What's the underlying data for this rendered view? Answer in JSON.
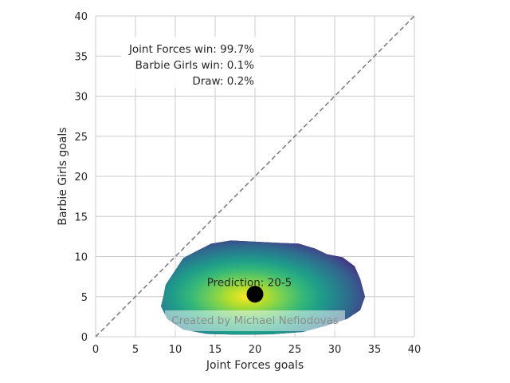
{
  "chart_data": {
    "type": "heatmap",
    "xlabel": "Joint Forces goals",
    "ylabel": "Barbie Girls goals",
    "xlim": [
      0,
      40
    ],
    "ylim": [
      0,
      40
    ],
    "x_ticks": [
      "0",
      "5",
      "10",
      "15",
      "20",
      "25",
      "30",
      "35",
      "40"
    ],
    "y_ticks": [
      "0",
      "5",
      "10",
      "15",
      "20",
      "25",
      "30",
      "35",
      "40"
    ],
    "grid": true,
    "colormap": "viridis",
    "density": {
      "center": [
        19,
        5
      ],
      "spread_x": 7,
      "spread_y": 3.4,
      "outline": [
        [
          8.5,
          5
        ],
        [
          8.8,
          6.5
        ],
        [
          9.8,
          8
        ],
        [
          11,
          9.8
        ],
        [
          12.5,
          10.6
        ],
        [
          14.5,
          11.6
        ],
        [
          17,
          12
        ],
        [
          19,
          11.9
        ],
        [
          21,
          11.8
        ],
        [
          23,
          11.7
        ],
        [
          25.5,
          11.6
        ],
        [
          27.5,
          11
        ],
        [
          29,
          10.3
        ],
        [
          31,
          9.9
        ],
        [
          32.5,
          8.8
        ],
        [
          33.2,
          7.2
        ],
        [
          33.8,
          5
        ],
        [
          33.2,
          3.3
        ],
        [
          31.5,
          2.2
        ],
        [
          29,
          1.4
        ],
        [
          26,
          0.6
        ],
        [
          22,
          0.3
        ],
        [
          18,
          0.25
        ],
        [
          14,
          0.35
        ],
        [
          11,
          0.9
        ],
        [
          9,
          2.2
        ],
        [
          8.2,
          3.8
        ]
      ]
    },
    "diagonal": {
      "from": [
        0,
        0
      ],
      "to": [
        40,
        40
      ],
      "style": "dashed",
      "color": "#808080"
    },
    "prediction_point": {
      "x": 20,
      "y": 5.3,
      "label": "Prediction: 20-5"
    },
    "probabilities": [
      "Joint Forces win: 99.7%",
      "Barbie Girls win: 0.1%",
      "Draw: 0.2%"
    ],
    "credit": "Created by Michael Nefiodovas"
  }
}
